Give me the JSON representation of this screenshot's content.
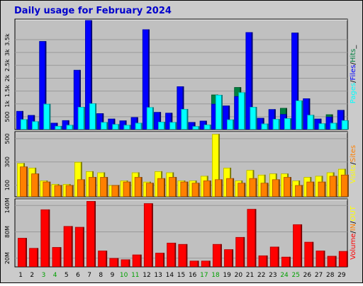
{
  "title": "Daily usage for February 2024",
  "colors": {
    "frame_bg": "#cbcbcb",
    "plot_bg": "#c0c0c0",
    "title": "#0000cc",
    "hits": "#008040",
    "files": "#0000ff",
    "pages": "#00ffff",
    "visits": "#ffff00",
    "sites": "#ff8000",
    "kbytes": "#ff0000",
    "in": "#ff8000",
    "out": "#ffff00",
    "weekend_label": "#00a000",
    "weekday_label": "#000000"
  },
  "chart_data": [
    {
      "type": "bar",
      "panel": "hits-files-pages",
      "ylabel_parts": [
        "Pages",
        "/",
        "Files",
        "/",
        "Hits",
        "_"
      ],
      "y_ticks": [
        "500",
        "1k",
        "1.5k",
        "2k",
        "2.5k",
        "3k",
        "3.5k"
      ],
      "y_tick_values": [
        500,
        1000,
        1500,
        2000,
        2500,
        3000,
        3500
      ],
      "ylim": [
        0,
        4300
      ],
      "categories": [
        "1",
        "2",
        "3",
        "4",
        "5",
        "6",
        "7",
        "8",
        "9",
        "10",
        "11",
        "12",
        "13",
        "14",
        "15",
        "16",
        "17",
        "18",
        "19",
        "20",
        "21",
        "22",
        "23",
        "24",
        "25",
        "26",
        "27",
        "28",
        "29"
      ],
      "weekend_days": [
        "3",
        "4",
        "10",
        "11",
        "17",
        "18",
        "24",
        "25"
      ],
      "series": [
        {
          "name": "Hits",
          "values": [
            720,
            560,
            3440,
            260,
            360,
            2320,
            4260,
            630,
            420,
            350,
            480,
            3900,
            680,
            650,
            1680,
            290,
            340,
            1360,
            930,
            1650,
            3790,
            450,
            790,
            840,
            3770,
            1210,
            420,
            590,
            760
          ]
        },
        {
          "name": "Files",
          "values": [
            720,
            560,
            3440,
            260,
            360,
            2320,
            4260,
            630,
            420,
            350,
            480,
            3900,
            680,
            650,
            1680,
            290,
            340,
            1000,
            930,
            1300,
            3790,
            450,
            790,
            600,
            3770,
            1210,
            420,
            500,
            760
          ]
        },
        {
          "name": "Pages",
          "values": [
            400,
            320,
            1000,
            140,
            180,
            880,
            1020,
            290,
            210,
            180,
            260,
            870,
            300,
            290,
            800,
            130,
            190,
            1350,
            390,
            1450,
            880,
            230,
            410,
            440,
            1130,
            570,
            240,
            260,
            360
          ]
        }
      ]
    },
    {
      "type": "bar",
      "panel": "visits-sites",
      "ylabel_parts": [
        "Visits",
        "/",
        "Sites"
      ],
      "y_ticks": [
        "100",
        "300",
        "500"
      ],
      "y_tick_values": [
        100,
        300,
        500
      ],
      "ylim": [
        0,
        560
      ],
      "categories": [
        "1",
        "2",
        "3",
        "4",
        "5",
        "6",
        "7",
        "8",
        "9",
        "10",
        "11",
        "12",
        "13",
        "14",
        "15",
        "16",
        "17",
        "18",
        "19",
        "20",
        "21",
        "22",
        "23",
        "24",
        "25",
        "26",
        "27",
        "28",
        "29"
      ],
      "series": [
        {
          "name": "Visits",
          "values": [
            290,
            250,
            140,
            110,
            110,
            300,
            220,
            210,
            100,
            140,
            210,
            130,
            220,
            210,
            140,
            140,
            180,
            540,
            250,
            140,
            230,
            190,
            200,
            200,
            140,
            170,
            180,
            210,
            240
          ]
        },
        {
          "name": "Sites",
          "values": [
            260,
            200,
            130,
            100,
            100,
            150,
            170,
            170,
            100,
            130,
            170,
            120,
            160,
            170,
            130,
            120,
            140,
            150,
            160,
            120,
            160,
            120,
            150,
            170,
            100,
            130,
            130,
            180,
            190
          ]
        }
      ]
    },
    {
      "type": "bar",
      "panel": "volume",
      "ylabel_parts": [
        "Volume",
        "/",
        "IN",
        "/",
        "OUT"
      ],
      "y_ticks": [
        "20M",
        "80M",
        "140M"
      ],
      "y_tick_values": [
        20,
        80,
        140
      ],
      "ylim": [
        0,
        155
      ],
      "categories": [
        "1",
        "2",
        "3",
        "4",
        "5",
        "6",
        "7",
        "8",
        "9",
        "10",
        "11",
        "12",
        "13",
        "14",
        "15",
        "16",
        "17",
        "18",
        "19",
        "20",
        "21",
        "22",
        "23",
        "24",
        "25",
        "26",
        "27",
        "28",
        "29"
      ],
      "series": [
        {
          "name": "Volume",
          "values": [
            66,
            43,
            131,
            45,
            93,
            91,
            150,
            37,
            20,
            17,
            28,
            145,
            32,
            55,
            52,
            14,
            14,
            52,
            40,
            68,
            132,
            26,
            46,
            23,
            97,
            57,
            37,
            25,
            36
          ]
        }
      ]
    }
  ]
}
